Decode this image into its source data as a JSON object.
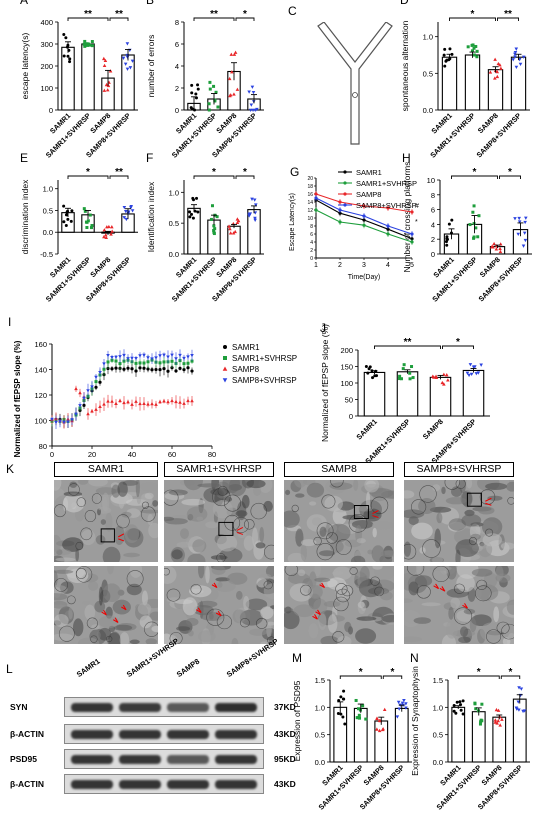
{
  "panels": {
    "A": {
      "letter": "A",
      "ylabel": "escape latency(s)",
      "yticks": [
        "0",
        "100",
        "200",
        "300",
        "400"
      ],
      "sig": [
        "**",
        "**"
      ]
    },
    "B": {
      "letter": "B",
      "ylabel": "number of errors",
      "yticks": [
        "0",
        "2",
        "4",
        "6",
        "8"
      ],
      "sig": [
        "**",
        "*"
      ]
    },
    "C": {
      "letter": "C"
    },
    "D": {
      "letter": "D",
      "ylabel": "spontaneous alternation",
      "yticks": [
        "0.0",
        "0.5",
        "1.0"
      ],
      "sig": [
        "*",
        "**"
      ]
    },
    "E": {
      "letter": "E",
      "ylabel": "discrimination index",
      "yticks": [
        "-0.5",
        "0.0",
        "0.5",
        "1.0"
      ],
      "sig": [
        "*",
        "**"
      ]
    },
    "F": {
      "letter": "F",
      "ylabel": "Identification index",
      "yticks": [
        "0.0",
        "0.5",
        "1.0"
      ],
      "sig": [
        "*",
        "*"
      ]
    },
    "G": {
      "letter": "G",
      "ylabel": "Escape Latency(s)",
      "xlabel": "Time(Day)",
      "yticks": [
        "0",
        "2",
        "4",
        "6",
        "8",
        "10",
        "12",
        "14",
        "16",
        "18",
        "20"
      ],
      "xticks": [
        "1",
        "2",
        "3",
        "4",
        "5"
      ],
      "marks": [
        "#",
        "*"
      ]
    },
    "H": {
      "letter": "H",
      "ylabel": "Number of crossing platforms",
      "yticks": [
        "0",
        "2",
        "4",
        "6",
        "8",
        "10"
      ],
      "sig": [
        "*",
        "*"
      ]
    },
    "I": {
      "letter": "I",
      "ylabel": "Normalized of fEPSP slope (%)",
      "xlabel": "Time  (min)",
      "yticks": [
        "80",
        "100",
        "120",
        "140",
        "160"
      ],
      "xticks": [
        "0",
        "20",
        "40",
        "60",
        "80"
      ]
    },
    "J": {
      "letter": "J",
      "ylabel": "Normalized of fEPSP slope (%)",
      "yticks": [
        "0",
        "50",
        "100",
        "150",
        "200"
      ],
      "sig": [
        "**",
        "*"
      ]
    },
    "K": {
      "letter": "K"
    },
    "L": {
      "letter": "L",
      "bands": [
        {
          "label": "SYN",
          "kd": "37KD"
        },
        {
          "label": "β-ACTIN",
          "kd": "43KD"
        },
        {
          "label": "PSD95",
          "kd": "95KD"
        },
        {
          "label": "β-ACTIN",
          "kd": "43KD"
        }
      ]
    },
    "M": {
      "letter": "M",
      "ylabel": "Expression of PSD95",
      "yticks": [
        "0.0",
        "0.5",
        "1.0",
        "1.5"
      ],
      "sig": [
        "*",
        "*"
      ]
    },
    "N": {
      "letter": "N",
      "ylabel": "Expression of Synaptophysin",
      "yticks": [
        "0.0",
        "0.5",
        "1.0",
        "1.5"
      ],
      "sig": [
        "*",
        "*"
      ]
    }
  },
  "groups": [
    "SAMR1",
    "SAMR1+SVHRSP",
    "SAMP8",
    "SAMP8+SVHRSP"
  ],
  "colors": {
    "SAMR1": "#000000",
    "SAMR1+SVHRSP": "#1e9e3c",
    "SAMP8": "#e8272a",
    "SAMP8+SVHRSP": "#2c43e0"
  },
  "em_headers": [
    "SAMR1",
    "SAMR1+SVHRSP",
    "SAMP8",
    "SAMP8+SVHRSP"
  ],
  "chart_data": [
    {
      "panel": "A",
      "type": "bar",
      "categories": [
        "SAMR1",
        "SAMR1+SVHRSP",
        "SAMP8",
        "SAMP8+SVHRSP"
      ],
      "values": [
        285,
        300,
        145,
        250
      ],
      "errors": [
        25,
        0,
        35,
        25
      ],
      "ylabel": "escape latency(s)",
      "ylim": [
        0,
        400
      ]
    },
    {
      "panel": "B",
      "type": "bar",
      "categories": [
        "SAMR1",
        "SAMR1+SVHRSP",
        "SAMP8",
        "SAMP8+SVHRSP"
      ],
      "values": [
        0.6,
        1.0,
        3.5,
        1.0
      ],
      "errors": [
        0.6,
        0.5,
        0.8,
        0.4
      ],
      "ylabel": "number of errors",
      "ylim": [
        0,
        8
      ]
    },
    {
      "panel": "D",
      "type": "bar",
      "categories": [
        "SAMR1",
        "SAMR1+SVHRSP",
        "SAMP8",
        "SAMP8+SVHRSP"
      ],
      "values": [
        0.72,
        0.75,
        0.55,
        0.72
      ],
      "errors": [
        0.04,
        0.04,
        0.04,
        0.04
      ],
      "ylabel": "spontaneous alternation",
      "ylim": [
        0,
        1.2
      ]
    },
    {
      "panel": "E",
      "type": "bar",
      "categories": [
        "SAMR1",
        "SAMR1+SVHRSP",
        "SAMP8",
        "SAMP8+SVHRSP"
      ],
      "values": [
        0.45,
        0.4,
        -0.02,
        0.42
      ],
      "errors": [
        0.1,
        0.1,
        0.04,
        0.12
      ],
      "ylabel": "discrimination index",
      "ylim": [
        -0.5,
        1.2
      ]
    },
    {
      "panel": "F",
      "type": "bar",
      "categories": [
        "SAMR1",
        "SAMR1+SVHRSP",
        "SAMP8",
        "SAMP8+SVHRSP"
      ],
      "values": [
        0.74,
        0.55,
        0.45,
        0.72
      ],
      "errors": [
        0.06,
        0.08,
        0.03,
        0.06
      ],
      "ylabel": "Identification index",
      "ylim": [
        0,
        1.2
      ]
    },
    {
      "panel": "G",
      "type": "line",
      "x": [
        1,
        2,
        3,
        4,
        5
      ],
      "series": [
        {
          "name": "SAMR1",
          "values": [
            14.5,
            11.2,
            9.5,
            7.2,
            4.8
          ]
        },
        {
          "name": "SAMR1+SVHRSP",
          "values": [
            12.0,
            9.0,
            8.2,
            6.0,
            4.0
          ]
        },
        {
          "name": "SAMP8",
          "values": [
            16.0,
            14.0,
            13.0,
            12.5,
            11.5
          ]
        },
        {
          "name": "SAMP8+SVHRSP",
          "values": [
            15.0,
            12.0,
            10.5,
            8.0,
            6.0
          ]
        }
      ],
      "ylabel": "Escape Latency(s)",
      "xlabel": "Time(Day)",
      "ylim": [
        0,
        20
      ]
    },
    {
      "panel": "H",
      "type": "bar",
      "categories": [
        "SAMR1",
        "SAMR1+SVHRSP",
        "SAMP8",
        "SAMP8+SVHRSP"
      ],
      "values": [
        2.7,
        4.0,
        1.0,
        3.3
      ],
      "errors": [
        0.7,
        1.2,
        0.2,
        0.9
      ],
      "ylabel": "Number of crossing platforms",
      "ylim": [
        0,
        10
      ]
    },
    {
      "panel": "I",
      "type": "scatter",
      "series": [
        {
          "name": "SAMR1",
          "plateau": 140
        },
        {
          "name": "SAMR1+SVHRSP",
          "plateau": 146
        },
        {
          "name": "SAMP8",
          "plateau": 114
        },
        {
          "name": "SAMP8+SVHRSP",
          "plateau": 150
        }
      ],
      "ylabel": "Normalized of fEPSP slope (%)",
      "xlabel": "Time  (min)",
      "xlim": [
        0,
        80
      ],
      "ylim": [
        80,
        160
      ]
    },
    {
      "panel": "J",
      "type": "bar",
      "categories": [
        "SAMR1",
        "SAMR1+SVHRSP",
        "SAMP8",
        "SAMP8+SVHRSP"
      ],
      "values": [
        132,
        134,
        117,
        138
      ],
      "errors": [
        5,
        6,
        6,
        6
      ],
      "ylabel": "Normalized of fEPSP slope (%)",
      "ylim": [
        0,
        200
      ]
    },
    {
      "panel": "M",
      "type": "bar",
      "categories": [
        "SAMR1",
        "SAMR1+SVHRSP",
        "SAMP8",
        "SAMP8+SVHRSP"
      ],
      "values": [
        1.0,
        0.98,
        0.75,
        0.98
      ],
      "errors": [
        0.1,
        0.08,
        0.07,
        0.06
      ],
      "ylabel": "Expression of PSD95",
      "ylim": [
        0,
        1.5
      ]
    },
    {
      "panel": "N",
      "type": "bar",
      "categories": [
        "SAMR1",
        "SAMR1+SVHRSP",
        "SAMP8",
        "SAMP8+SVHRSP"
      ],
      "values": [
        1.0,
        0.92,
        0.82,
        1.15
      ],
      "errors": [
        0.03,
        0.07,
        0.04,
        0.08
      ],
      "ylabel": "Expression of Synaptophysin",
      "ylim": [
        0,
        1.5
      ]
    }
  ]
}
